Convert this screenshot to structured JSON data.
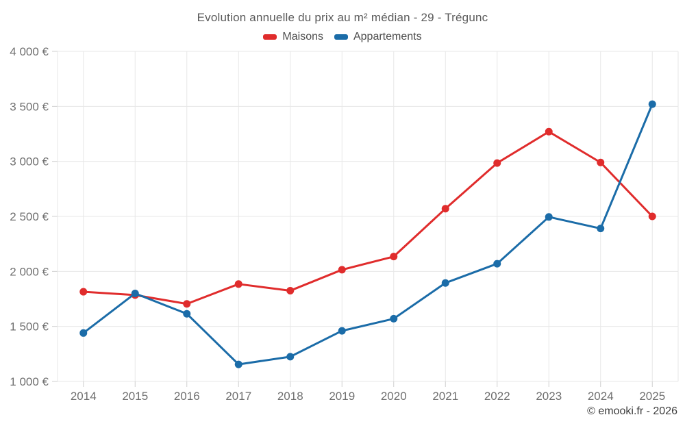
{
  "header": {
    "title": "Evolution annuelle du prix au m² médian - 29 - Trégunc"
  },
  "legend": {
    "items": [
      {
        "label": "Maisons",
        "color": "#e02c2c"
      },
      {
        "label": "Appartements",
        "color": "#1b6ca8"
      }
    ]
  },
  "footer": {
    "credit": "© emooki.fr - 2026"
  },
  "chart_data": {
    "type": "line",
    "title": "Evolution annuelle du prix au m² médian - 29 - Trégunc",
    "categories": [
      "2014",
      "2015",
      "2016",
      "2017",
      "2018",
      "2019",
      "2020",
      "2021",
      "2022",
      "2023",
      "2024",
      "2025"
    ],
    "series": [
      {
        "name": "Maisons",
        "color": "#e02c2c",
        "values": [
          1815,
          1785,
          1705,
          1885,
          1825,
          2015,
          2135,
          2570,
          2985,
          3270,
          2990,
          2500
        ]
      },
      {
        "name": "Appartements",
        "color": "#1b6ca8",
        "values": [
          1440,
          1800,
          1615,
          1155,
          1225,
          1460,
          1570,
          1895,
          2070,
          2495,
          2390,
          3520
        ]
      }
    ],
    "y_axis": {
      "min": 1000,
      "max": 4000,
      "tick_step": 500,
      "ticks": [
        {
          "value": 1000,
          "label": "1 000 €"
        },
        {
          "value": 1500,
          "label": "1 500 €"
        },
        {
          "value": 2000,
          "label": "2 000 €"
        },
        {
          "value": 2500,
          "label": "2 500 €"
        },
        {
          "value": 3000,
          "label": "3 000 €"
        },
        {
          "value": 3500,
          "label": "3 500 €"
        },
        {
          "value": 4000,
          "label": "4 000 €"
        }
      ],
      "unit": "€"
    },
    "grid": true,
    "legend_position": "top",
    "colors": {
      "grid": "#e7e7e7",
      "tick": "#cfcfcf",
      "axis_text": "#6f6f6f"
    }
  }
}
